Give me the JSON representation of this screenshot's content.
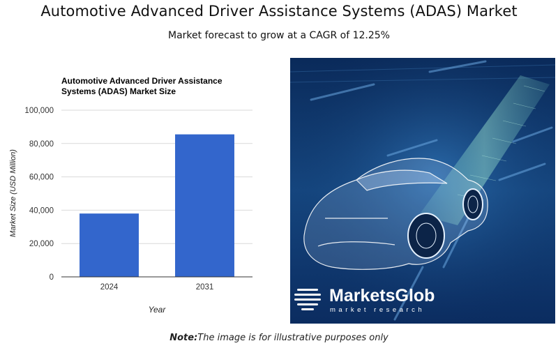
{
  "header": {
    "title": "Automotive Advanced Driver Assistance Systems (ADAS) Market",
    "subtitle": "Market forecast to grow at a CAGR of 12.25%"
  },
  "chart_data": {
    "type": "bar",
    "title_lines": [
      "Automotive Advanced Driver Assistance",
      "Systems (ADAS) Market Size"
    ],
    "categories": [
      "2024",
      "2031"
    ],
    "values": [
      38000,
      85500
    ],
    "xlabel": "Year",
    "ylabel": "Market Size (USD Million)",
    "ylim": [
      0,
      100000
    ],
    "yticks": [
      0,
      20000,
      40000,
      60000,
      80000,
      100000
    ],
    "ytick_labels": [
      "0",
      "20,000",
      "40,000",
      "60,000",
      "80,000",
      "100,000"
    ],
    "grid": true,
    "bar_color": "#3366cc"
  },
  "image": {
    "description_icon": "car-hero-image",
    "brand_name": "MarketsGlob",
    "brand_tagline": "market research"
  },
  "footer": {
    "note_label": "Note:",
    "note_text": "The image is for illustrative purposes only"
  }
}
